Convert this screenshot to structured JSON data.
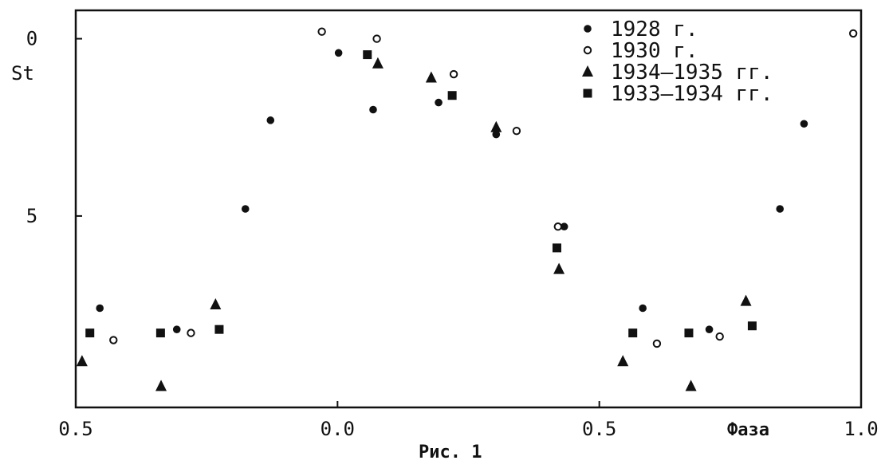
{
  "chart_data": {
    "type": "scatter",
    "title": "",
    "xlabel": "Фаза",
    "ylabel": "St",
    "caption": "Рис. 1",
    "x_tick_labels": [
      "0.5",
      "0.0",
      "0.5",
      "1.0"
    ],
    "x_tick_values": [
      -0.5,
      0.0,
      0.5,
      1.0
    ],
    "y_tick_labels": [
      "0",
      "5"
    ],
    "y_tick_values": [
      0,
      5
    ],
    "xlim": [
      -0.5,
      1.0
    ],
    "ylim": [
      10.4,
      -0.8
    ],
    "y_inverted": true,
    "grid": false,
    "legend_position": "top-right",
    "series": [
      {
        "name": "1928 г.",
        "marker": "filled-circle",
        "points": [
          [
            -0.454,
            7.6
          ],
          [
            -0.307,
            8.2
          ],
          [
            -0.176,
            4.8
          ],
          [
            -0.128,
            2.3
          ],
          [
            0.002,
            0.4
          ],
          [
            0.068,
            2.0
          ],
          [
            0.193,
            1.8
          ],
          [
            0.303,
            2.7
          ],
          [
            0.433,
            5.3
          ],
          [
            0.583,
            7.6
          ],
          [
            0.71,
            8.2
          ],
          [
            0.845,
            4.8
          ],
          [
            0.891,
            2.4
          ]
        ]
      },
      {
        "name": "1930 г.",
        "marker": "open-circle",
        "points": [
          [
            -0.428,
            8.5
          ],
          [
            -0.28,
            8.3
          ],
          [
            -0.03,
            -0.2
          ],
          [
            0.075,
            0.0
          ],
          [
            0.222,
            1.0
          ],
          [
            0.342,
            2.6
          ],
          [
            0.421,
            5.3
          ],
          [
            0.61,
            8.6
          ],
          [
            0.73,
            8.4
          ],
          [
            0.985,
            -0.15
          ]
        ]
      },
      {
        "name": "1934–1935 гг.",
        "marker": "filled-triangle",
        "points": [
          [
            -0.488,
            9.1
          ],
          [
            -0.337,
            9.8
          ],
          [
            -0.233,
            7.5
          ],
          [
            0.077,
            0.7
          ],
          [
            0.179,
            1.1
          ],
          [
            0.303,
            2.5
          ],
          [
            0.423,
            6.5
          ],
          [
            0.545,
            9.1
          ],
          [
            0.675,
            9.8
          ],
          [
            0.78,
            7.4
          ]
        ]
      },
      {
        "name": "1933–1934 гг.",
        "marker": "filled-square",
        "points": [
          [
            -0.473,
            8.3
          ],
          [
            -0.338,
            8.3
          ],
          [
            -0.226,
            8.2
          ],
          [
            0.057,
            0.45
          ],
          [
            0.219,
            1.6
          ],
          [
            0.419,
            5.9
          ],
          [
            0.564,
            8.3
          ],
          [
            0.671,
            8.3
          ],
          [
            0.792,
            8.1
          ]
        ]
      }
    ]
  }
}
